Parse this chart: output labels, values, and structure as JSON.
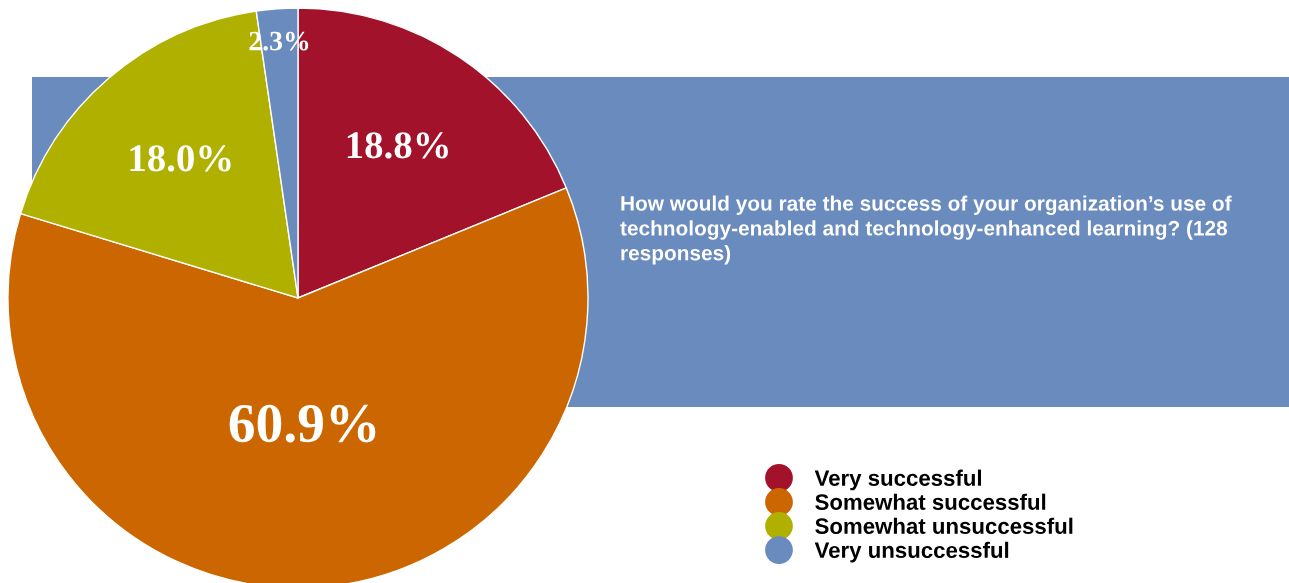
{
  "chart_data": {
    "type": "pie",
    "title": "How would you rate the success of your organization’s use of technology-enabled and technology-enhanced learning? (128 responses)",
    "categories": [
      "Very successful",
      "Somewhat successful",
      "Somewhat unsuccessful",
      "Very unsuccessful"
    ],
    "values": [
      18.8,
      60.9,
      18.0,
      2.3
    ],
    "colors": [
      "#a3122b",
      "#cc6600",
      "#b0b000",
      "#6a8bbd"
    ],
    "value_labels": [
      "18.8%",
      "60.9%",
      "18.0%",
      "2.3%"
    ],
    "legend": "bottom right"
  }
}
